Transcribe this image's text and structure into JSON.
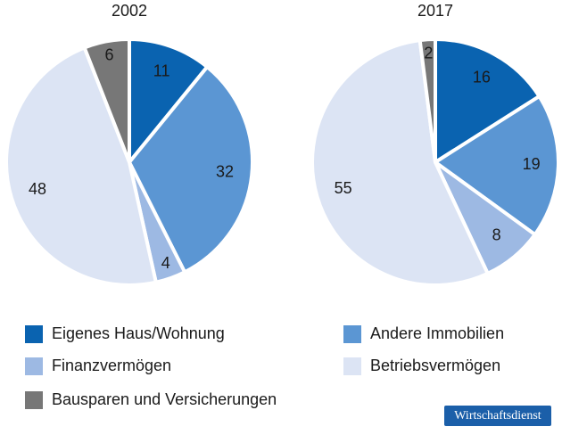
{
  "chart_data": [
    {
      "type": "pie",
      "title": "2002",
      "values": [
        11,
        32,
        4,
        48,
        6
      ]
    },
    {
      "type": "pie",
      "title": "2017",
      "values": [
        16,
        19,
        8,
        55,
        2
      ]
    }
  ],
  "legend": {
    "items": [
      {
        "name": "Eigenes Haus/Wohnung",
        "color": "#0a63b0"
      },
      {
        "name": "Andere Immobilien",
        "color": "#5b96d3"
      },
      {
        "name": "Finanzvermögen",
        "color": "#9db9e3"
      },
      {
        "name": "Betriebsvermögen",
        "color": "#dce4f4"
      },
      {
        "name": "Bausparen und Versicherungen",
        "color": "#777777"
      }
    ]
  },
  "source": "Wirtschaftsdienst"
}
